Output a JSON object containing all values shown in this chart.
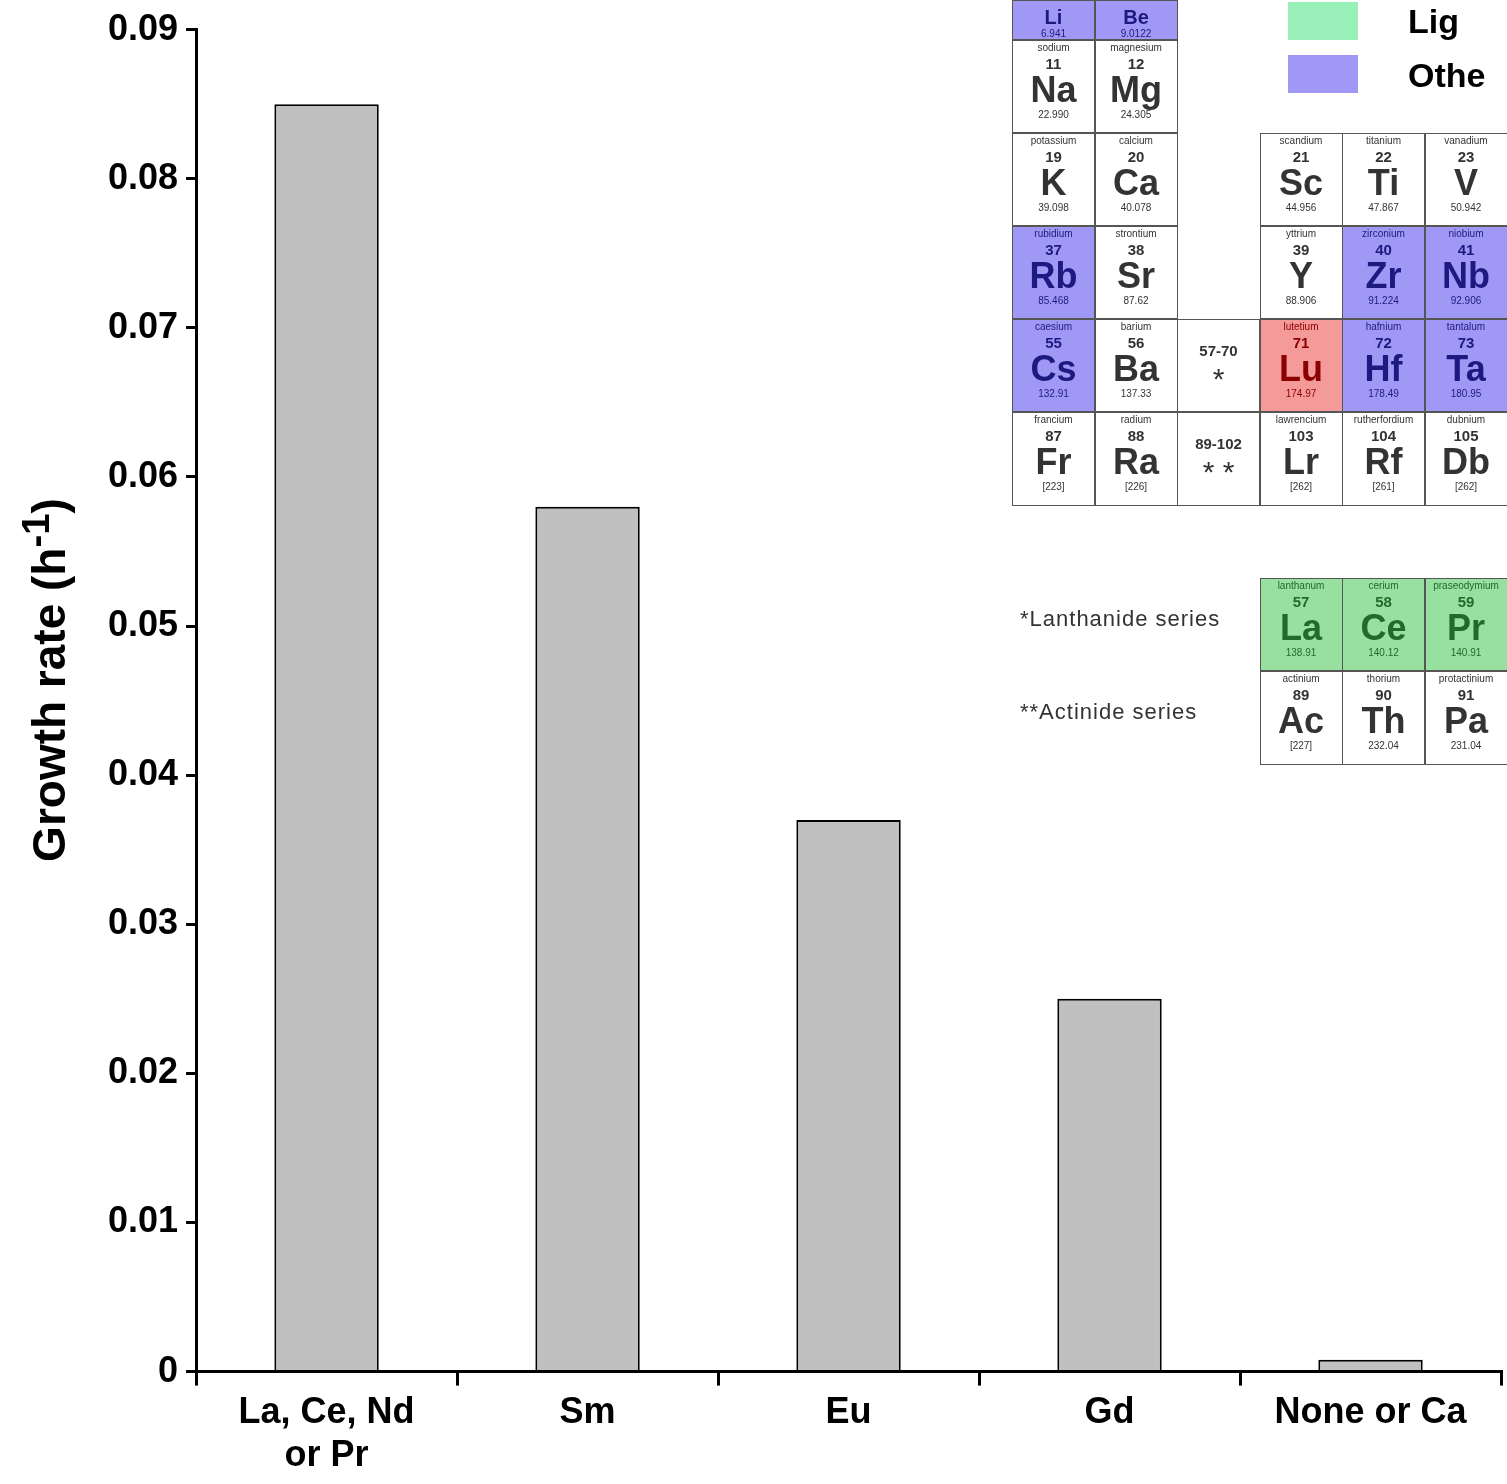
{
  "chart_data": {
    "type": "bar",
    "ylabel": "Growth rate (h$^{-1}$)",
    "categories": [
      "La, Ce, Nd or Pr",
      "Sm",
      "Eu",
      "Gd",
      "None or Ca"
    ],
    "values": [
      0.085,
      0.058,
      0.037,
      0.025,
      0.0008
    ],
    "color": "#c0c0c0",
    "ylim": [
      0,
      0.09
    ],
    "yticks": [
      0,
      0.01,
      0.02,
      0.03,
      0.04,
      0.05,
      0.06,
      0.07,
      0.08,
      0.09
    ],
    "grid": false,
    "legend": false,
    "annotations": [
      "Li\n6.941",
      "Be\n9.0122",
      "sodium\n11\nNa\n22.990",
      "magnesium\n12\nMg\n24.305",
      "potassium\n19\nK\n39.098",
      "calcium\n20\nCa\n40.078",
      "scandium\n21\nSc\n44.956",
      "titanium\n22\nTi\n47.867",
      "vanadium\n23\nV\n50.942",
      "rubidium\n37\nRb\n85.468",
      "strontium\n38\nSr\n87.62",
      "yttrium\n39\nY\n88.906",
      "zirconium\n40\nZr\n91.224",
      "niobium\n41\nNb\n92.906",
      "caesium\n55\nCs\n132.91",
      "barium\n56\nBa\n137.33",
      "57-70\n*",
      "lutetium\n71\nLu\n174.97",
      "hafnium\n72\nHf\n178.49",
      "tantalum\n73\nTa\n180.95",
      "francium\n87\nFr\n[223]",
      "radium\n88\nRa\n[226]",
      "89-102\n* *",
      "lawrencium\n103\nLr\n[262]",
      "rutherfordium\n104\nRf\n[261]",
      "dubnium\n105\nDb\n[262]",
      "lanthanum\n57\nLa\n138.91",
      "cerium\n58\nCe\n140.12",
      "praseodymium\n59\nPr\n140.91",
      "actinium\n89\nAc\n[227]",
      "thorium\n90\nTh\n232.04",
      "protactinium\n91\nPa\n231.04",
      "*Lanthanide series",
      "**Actinide series",
      "Lig",
      "Othe"
    ]
  }
}
